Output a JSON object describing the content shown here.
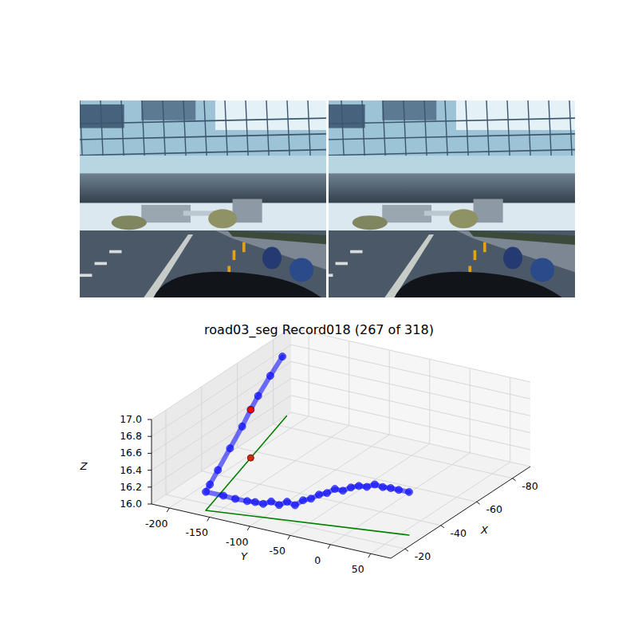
{
  "chart_data": {
    "type": "line3d",
    "title": "road03_seg Record018 (267 of 318)",
    "x_label": "X",
    "y_label": "Y",
    "z_label": "Z",
    "xlim": [
      -90,
      -12
    ],
    "ylim": [
      -222,
      75
    ],
    "zlim": [
      16,
      17
    ],
    "xticks": [
      -80,
      -60,
      -40,
      -20
    ],
    "yticks": [
      -200,
      -150,
      -100,
      -50,
      0,
      50
    ],
    "zticks": [
      {
        "value": 16,
        "label": "16.0"
      },
      16.2,
      16.4,
      16.6,
      16.8,
      {
        "value": 17,
        "label": "17.0"
      }
    ],
    "grid": true,
    "series": [
      {
        "type": "line",
        "color": "#0000ff",
        "marker": "o",
        "x": [
          -29.25,
          -28.56,
          -28.03,
          -27.5,
          -26.97,
          -26.43,
          -25.9,
          -25.37,
          -24.84,
          -24.31,
          -23.78,
          -23.25,
          -22.71,
          -22.18,
          -21.65,
          -21.12,
          -20.59,
          -20.06,
          -19.53,
          -18.99,
          -18.46,
          -17.67,
          -16.87,
          -15.7,
          -19.3,
          -26.4,
          -37.1,
          -47.8,
          -55.4,
          -62.0,
          -72.7,
          -83.4
        ],
        "y": [
          59.4,
          48.1,
          39.3,
          30.6,
          21.9,
          13.2,
          4.5,
          -4.2,
          -13.0,
          -21.7,
          -30.4,
          -39.1,
          -47.8,
          -56.5,
          -65.3,
          -74.0,
          -82.7,
          -91.4,
          -100.1,
          -108.9,
          -117.6,
          -130.6,
          -143.7,
          -162.9,
          -165.8,
          -171.6,
          -180.3,
          -189.0,
          -195.3,
          -200.7,
          -209.4,
          -218.1
        ],
        "z": [
          16.51,
          16.52,
          16.53,
          16.53,
          16.55,
          16.51,
          16.51,
          16.48,
          16.43,
          16.44,
          16.38,
          16.35,
          16.29,
          16.26,
          16.19,
          16.22,
          16.17,
          16.2,
          16.16,
          16.17,
          16.17,
          16.18,
          16.2,
          16.22,
          16.25,
          16.31,
          16.4,
          16.49,
          16.57,
          16.63,
          16.7,
          16.76
        ]
      },
      {
        "type": "line",
        "color": "#008000",
        "line_style": "solid",
        "x": [
          -29.25,
          -15.7,
          -87.0
        ],
        "y": [
          59.4,
          -162.9,
          -221.0
        ],
        "z": [
          16,
          16,
          16
        ]
      },
      {
        "type": "scatter",
        "color": "#ff0000",
        "marker": "o",
        "x": [
          -55.4
        ],
        "y": [
          -195.3
        ],
        "z": [
          16.57
        ]
      },
      {
        "type": "scatter",
        "color": "#cc2a10",
        "marker": "o",
        "x": [
          -55.4
        ],
        "y": [
          -195.3
        ],
        "z": [
          16
        ]
      }
    ]
  }
}
